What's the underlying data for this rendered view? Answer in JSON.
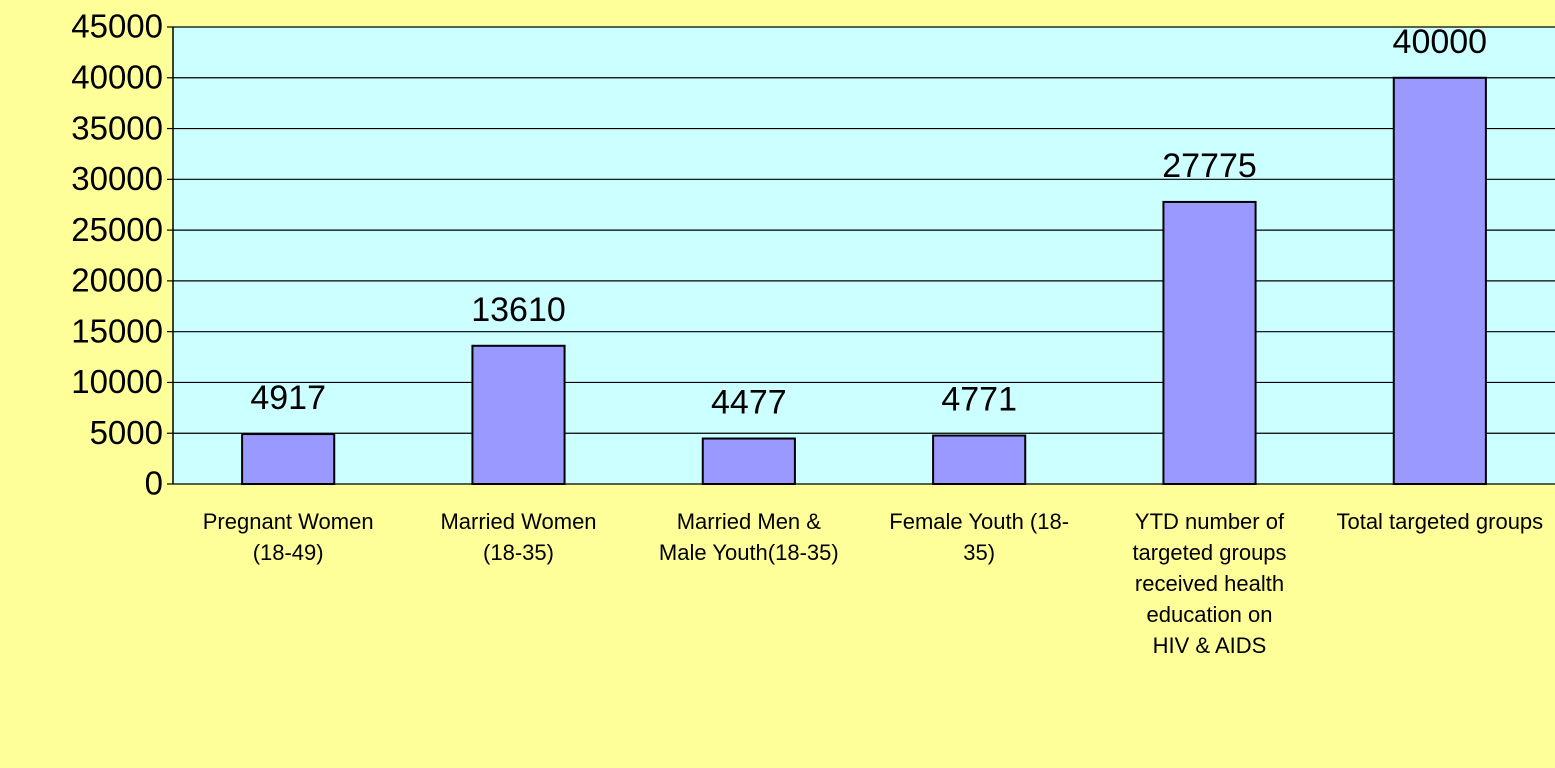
{
  "chart_data": {
    "type": "bar",
    "categories": [
      "Pregnant Women (18-49)",
      "Married Women (18-35)",
      "Married Men & Male Youth(18-35)",
      "Female Youth (18-35)",
      "YTD number of targeted groups received health education on HIV & AIDS",
      "Total targeted groups"
    ],
    "values": [
      4917,
      13610,
      4477,
      4771,
      27775,
      40000
    ],
    "color": "#9999ff",
    "ylim": [
      0,
      45000
    ],
    "yticks": [
      0,
      5000,
      10000,
      15000,
      20000,
      25000,
      30000,
      35000,
      40000,
      45000
    ],
    "grid": true
  }
}
